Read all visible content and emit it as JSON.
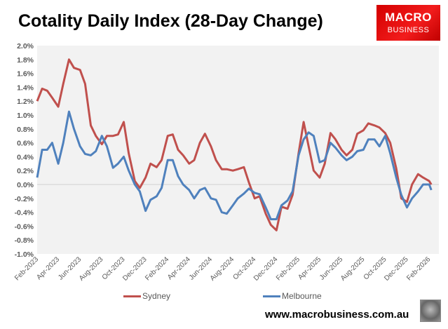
{
  "chart_data": {
    "type": "line",
    "title": "Cotality Daily Index (28-Day Change)",
    "xlabel": "",
    "ylabel": "",
    "ylim": [
      -1.0,
      2.0
    ],
    "yticks": [
      "2.0%",
      "1.8%",
      "1.6%",
      "1.4%",
      "1.2%",
      "1.0%",
      "0.8%",
      "0.6%",
      "0.4%",
      "0.2%",
      "0.0%",
      "-0.2%",
      "-0.4%",
      "-0.6%",
      "-0.8%",
      "-1.0%"
    ],
    "xticks": [
      "Feb-2023",
      "Apr-2023",
      "Jun-2023",
      "Aug-2023",
      "Oct-2023",
      "Dec-2023",
      "Feb-2024",
      "Apr-2024",
      "Jun-2024",
      "Aug-2024",
      "Oct-2024",
      "Dec-2024",
      "Feb-2025",
      "Apr-2025",
      "Jun-2025",
      "Aug-2025",
      "Oct-2025",
      "Dec-2025",
      "Feb-2026"
    ],
    "grid": false,
    "legend_placement": "bottom",
    "x": [
      "2023-02-01",
      "2023-02-15",
      "2023-03-01",
      "2023-03-15",
      "2023-04-01",
      "2023-04-15",
      "2023-05-01",
      "2023-05-15",
      "2023-06-01",
      "2023-06-15",
      "2023-07-01",
      "2023-07-15",
      "2023-08-01",
      "2023-08-15",
      "2023-09-01",
      "2023-09-15",
      "2023-10-01",
      "2023-10-15",
      "2023-11-01",
      "2023-11-15",
      "2023-12-01",
      "2023-12-15",
      "2024-01-01",
      "2024-01-15",
      "2024-02-01",
      "2024-02-15",
      "2024-03-01",
      "2024-03-15",
      "2024-04-01",
      "2024-04-15",
      "2024-05-01",
      "2024-05-15",
      "2024-06-01",
      "2024-06-15",
      "2024-07-01",
      "2024-07-15",
      "2024-08-01",
      "2024-08-15",
      "2024-09-01",
      "2024-09-15",
      "2024-10-01",
      "2024-10-15",
      "2024-11-01",
      "2024-11-15",
      "2024-12-01",
      "2024-12-15",
      "2025-01-01",
      "2025-01-15",
      "2025-02-01",
      "2025-02-15",
      "2025-03-01",
      "2025-03-15",
      "2025-04-01",
      "2025-04-15",
      "2025-05-01",
      "2025-05-15",
      "2025-06-01",
      "2025-06-15",
      "2025-07-01",
      "2025-07-15",
      "2025-08-01",
      "2025-08-15",
      "2025-09-01",
      "2025-09-15",
      "2025-10-01",
      "2025-10-15",
      "2025-11-01",
      "2025-11-15",
      "2025-12-01",
      "2025-12-15",
      "2026-01-01",
      "2026-01-15",
      "2026-02-01",
      "2026-02-07"
    ],
    "series": [
      {
        "name": "Sydney",
        "color": "#C0504D",
        "values": [
          1.2,
          1.38,
          1.35,
          1.25,
          1.12,
          1.45,
          1.8,
          1.68,
          1.65,
          1.45,
          0.85,
          0.7,
          0.58,
          0.7,
          0.7,
          0.72,
          0.9,
          0.45,
          0.05,
          -0.05,
          0.1,
          0.3,
          0.25,
          0.35,
          0.7,
          0.72,
          0.5,
          0.42,
          0.3,
          0.35,
          0.6,
          0.73,
          0.55,
          0.35,
          0.22,
          0.22,
          0.2,
          0.22,
          0.25,
          0.03,
          -0.2,
          -0.17,
          -0.42,
          -0.58,
          -0.66,
          -0.32,
          -0.35,
          -0.15,
          0.45,
          0.9,
          0.55,
          0.2,
          0.1,
          0.3,
          0.74,
          0.65,
          0.5,
          0.42,
          0.5,
          0.73,
          0.78,
          0.88,
          0.85,
          0.82,
          0.74,
          0.6,
          0.23,
          -0.2,
          -0.25,
          0.0,
          0.15,
          0.1,
          0.05,
          0.0
        ]
      },
      {
        "name": "Melbourne",
        "color": "#4F81BD",
        "values": [
          0.1,
          0.5,
          0.5,
          0.6,
          0.3,
          0.6,
          1.05,
          0.8,
          0.55,
          0.44,
          0.42,
          0.48,
          0.7,
          0.55,
          0.24,
          0.3,
          0.4,
          0.2,
          0.0,
          -0.1,
          -0.38,
          -0.22,
          -0.17,
          -0.05,
          0.35,
          0.35,
          0.12,
          0.0,
          -0.08,
          -0.2,
          -0.08,
          -0.05,
          -0.2,
          -0.22,
          -0.4,
          -0.42,
          -0.3,
          -0.2,
          -0.13,
          -0.06,
          -0.12,
          -0.14,
          -0.33,
          -0.5,
          -0.5,
          -0.3,
          -0.23,
          -0.1,
          0.42,
          0.65,
          0.75,
          0.7,
          0.32,
          0.35,
          0.6,
          0.53,
          0.42,
          0.35,
          0.4,
          0.48,
          0.5,
          0.65,
          0.65,
          0.55,
          0.7,
          0.45,
          0.1,
          -0.15,
          -0.33,
          -0.2,
          -0.1,
          0.0,
          0.0,
          -0.08
        ]
      }
    ]
  },
  "logo": {
    "line1": "MACRO",
    "line2": "BUSINESS"
  },
  "footer": {
    "website": "www.macrobusiness.com.au"
  },
  "colors": {
    "plot_background": "#F2F2F2",
    "logo": "#E10000"
  }
}
